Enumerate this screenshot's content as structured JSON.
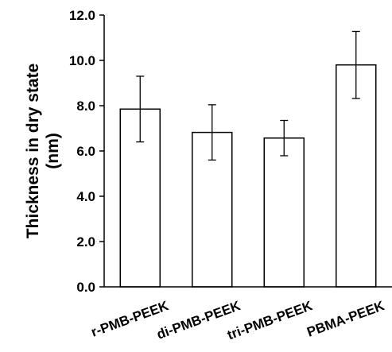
{
  "chart_data": {
    "type": "bar",
    "title": "",
    "xlabel": "",
    "ylabel_lines": [
      "Thickness in dry state",
      "(nm)"
    ],
    "categories": [
      "r-PMB-PEEK",
      "di-PMB-PEEK",
      "tri-PMB-PEEK",
      "PBMA-PEEK"
    ],
    "values": [
      7.85,
      6.82,
      6.57,
      9.8
    ],
    "error": [
      1.45,
      1.22,
      0.78,
      1.48
    ],
    "ylim": [
      0,
      12
    ],
    "yticks": [
      "0.0",
      "2.0",
      "4.0",
      "6.0",
      "8.0",
      "10.0",
      "12.0"
    ],
    "grid": false,
    "legend": "none",
    "colors": {
      "bar_fill": "#ffffff",
      "bar_stroke": "#000000",
      "axis": "#000000"
    }
  }
}
